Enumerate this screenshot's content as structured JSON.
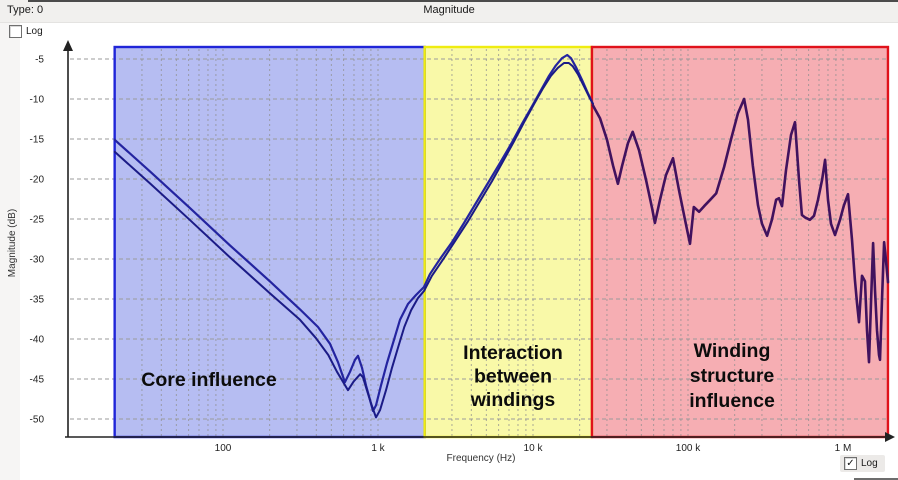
{
  "window": {
    "title": "Magnitude",
    "type_label": "Type: 0",
    "log_checkbox_top": {
      "label": "Log",
      "checked": false
    },
    "log_checkbox_bottom": {
      "label": "Log",
      "checked": true
    }
  },
  "chart_data": {
    "type": "line",
    "title": "Magnitude",
    "x_axis": {
      "label": "Frequency (Hz)",
      "scale": "log",
      "range_hz": [
        20,
        2000000
      ],
      "ticks": [
        {
          "value": 100,
          "label": "100"
        },
        {
          "value": 1000,
          "label": "1 k"
        },
        {
          "value": 10000,
          "label": "10 k"
        },
        {
          "value": 100000,
          "label": "100 k"
        },
        {
          "value": 1000000,
          "label": "1 M"
        }
      ]
    },
    "y_axis": {
      "label": "Magnitude (dB)",
      "range_db": [
        -52,
        -4
      ],
      "ticks": [
        -5,
        -10,
        -15,
        -20,
        -25,
        -30,
        -35,
        -40,
        -45,
        -50
      ]
    },
    "regions": [
      {
        "name": "core-influence",
        "label_lines": [
          "Core influence"
        ],
        "from_hz": 20,
        "to_hz": 2000,
        "fill": "#b6bdf2",
        "border": "#2025d8"
      },
      {
        "name": "interaction-between-windings",
        "label_lines": [
          "Interaction",
          "between",
          "windings"
        ],
        "from_hz": 2000,
        "to_hz": 24000,
        "fill": "#f9f9a8",
        "border": "#efec10"
      },
      {
        "name": "winding-structure-influence",
        "label_lines": [
          "Winding",
          "structure",
          "influence"
        ],
        "from_hz": 24000,
        "to_hz": 1950000,
        "fill": "#f6aeb3",
        "border": "#e0121b"
      }
    ],
    "series": [
      {
        "name": "sweep-upper",
        "color": "#2424a0",
        "width": 2.2,
        "points_hz_db": [
          [
            20,
            -15.1
          ],
          [
            34,
            -19.1
          ],
          [
            61,
            -23.6
          ],
          [
            111,
            -28.3
          ],
          [
            201,
            -32.8
          ],
          [
            314,
            -36.3
          ],
          [
            410,
            -38.5
          ],
          [
            490,
            -40.6
          ],
          [
            552,
            -42.9
          ],
          [
            612,
            -45.4
          ],
          [
            660,
            -44.1
          ],
          [
            711,
            -42.6
          ],
          [
            743,
            -42.1
          ],
          [
            789,
            -43.6
          ],
          [
            837,
            -45.8
          ],
          [
            888,
            -47.6
          ],
          [
            929,
            -49.0
          ],
          [
            971,
            -48.3
          ],
          [
            1046,
            -45.8
          ],
          [
            1143,
            -43.0
          ],
          [
            1268,
            -40.1
          ],
          [
            1387,
            -37.6
          ],
          [
            1563,
            -35.6
          ],
          [
            1758,
            -34.5
          ],
          [
            1981,
            -33.5
          ],
          [
            2163,
            -31.9
          ],
          [
            2512,
            -30.0
          ],
          [
            3000,
            -27.9
          ],
          [
            3589,
            -25.5
          ],
          [
            4285,
            -23.0
          ],
          [
            5125,
            -20.5
          ],
          [
            6128,
            -18.0
          ],
          [
            7328,
            -15.4
          ],
          [
            8492,
            -13.1
          ],
          [
            9860,
            -10.9
          ],
          [
            11270,
            -8.9
          ],
          [
            12680,
            -7.1
          ],
          [
            14060,
            -5.8
          ],
          [
            15380,
            -4.9
          ],
          [
            16610,
            -4.5
          ],
          [
            17580,
            -4.9
          ],
          [
            18920,
            -6.0
          ],
          [
            20700,
            -7.6
          ],
          [
            22650,
            -9.3
          ],
          [
            24340,
            -10.6
          ]
        ]
      },
      {
        "name": "sweep-lower",
        "color": "#1b1b86",
        "width": 2.0,
        "points_hz_db": [
          [
            20,
            -16.6
          ],
          [
            34,
            -20.6
          ],
          [
            61,
            -25.1
          ],
          [
            111,
            -29.8
          ],
          [
            201,
            -34.3
          ],
          [
            314,
            -37.6
          ],
          [
            398,
            -39.9
          ],
          [
            478,
            -42.0
          ],
          [
            544,
            -44.1
          ],
          [
            640,
            -46.4
          ],
          [
            697,
            -45.3
          ],
          [
            768,
            -44.4
          ],
          [
            800,
            -44.8
          ],
          [
            848,
            -46.4
          ],
          [
            900,
            -48.0
          ],
          [
            971,
            -49.8
          ],
          [
            1030,
            -48.9
          ],
          [
            1126,
            -46.4
          ],
          [
            1232,
            -43.6
          ],
          [
            1349,
            -41.0
          ],
          [
            1477,
            -38.5
          ],
          [
            1635,
            -36.4
          ],
          [
            1810,
            -34.9
          ],
          [
            1981,
            -34.0
          ],
          [
            2226,
            -32.1
          ],
          [
            2661,
            -29.9
          ],
          [
            3180,
            -27.6
          ],
          [
            3800,
            -25.3
          ],
          [
            4542,
            -22.8
          ],
          [
            5428,
            -20.3
          ],
          [
            6487,
            -17.6
          ],
          [
            7540,
            -15.3
          ],
          [
            8763,
            -12.9
          ],
          [
            10180,
            -10.6
          ],
          [
            11650,
            -8.6
          ],
          [
            13040,
            -7.1
          ],
          [
            14470,
            -6.1
          ],
          [
            15840,
            -5.5
          ],
          [
            17010,
            -5.5
          ],
          [
            18040,
            -5.9
          ],
          [
            19470,
            -6.9
          ],
          [
            21290,
            -8.4
          ],
          [
            23240,
            -9.9
          ],
          [
            24340,
            -10.6
          ]
        ]
      },
      {
        "name": "sweep-high-frequency",
        "color": "#41125e",
        "width": 2.6,
        "points_hz_db": [
          [
            24340,
            -10.8
          ],
          [
            27050,
            -12.4
          ],
          [
            30000,
            -15.1
          ],
          [
            32800,
            -18.3
          ],
          [
            35300,
            -20.6
          ],
          [
            37500,
            -18.4
          ],
          [
            41000,
            -15.5
          ],
          [
            44000,
            -14.1
          ],
          [
            48300,
            -16.4
          ],
          [
            53600,
            -20.1
          ],
          [
            58600,
            -23.6
          ],
          [
            61200,
            -25.5
          ],
          [
            66000,
            -22.6
          ],
          [
            72100,
            -19.5
          ],
          [
            80000,
            -17.4
          ],
          [
            87500,
            -21.4
          ],
          [
            95700,
            -25.1
          ],
          [
            103000,
            -28.1
          ],
          [
            109000,
            -23.5
          ],
          [
            118000,
            -24.1
          ],
          [
            127000,
            -23.4
          ],
          [
            139000,
            -22.6
          ],
          [
            152000,
            -21.8
          ],
          [
            171000,
            -18.5
          ],
          [
            189000,
            -15.1
          ],
          [
            210000,
            -11.8
          ],
          [
            230000,
            -10.0
          ],
          [
            244000,
            -12.6
          ],
          [
            262000,
            -18.3
          ],
          [
            283000,
            -23.3
          ],
          [
            300000,
            -25.6
          ],
          [
            324000,
            -27.1
          ],
          [
            348000,
            -25.1
          ],
          [
            370000,
            -22.6
          ],
          [
            386000,
            -22.4
          ],
          [
            404000,
            -23.4
          ],
          [
            429000,
            -18.9
          ],
          [
            462000,
            -14.5
          ],
          [
            490000,
            -12.9
          ],
          [
            520000,
            -20.1
          ],
          [
            543000,
            -24.5
          ],
          [
            569000,
            -24.8
          ],
          [
            612000,
            -25.1
          ],
          [
            650000,
            -24.6
          ],
          [
            690000,
            -22.6
          ],
          [
            733000,
            -20.1
          ],
          [
            766000,
            -17.6
          ],
          [
            800000,
            -22.6
          ],
          [
            837000,
            -25.6
          ],
          [
            888000,
            -27.0
          ],
          [
            957000,
            -25.1
          ],
          [
            1014000,
            -23.3
          ],
          [
            1077000,
            -21.9
          ],
          [
            1143000,
            -27.6
          ],
          [
            1194000,
            -32.6
          ],
          [
            1231000,
            -35.5
          ],
          [
            1268000,
            -37.9
          ],
          [
            1326000,
            -32.1
          ],
          [
            1387000,
            -32.8
          ],
          [
            1429000,
            -38.9
          ],
          [
            1472000,
            -42.9
          ],
          [
            1517000,
            -35.1
          ],
          [
            1563000,
            -28.0
          ],
          [
            1608000,
            -33.9
          ],
          [
            1656000,
            -38.9
          ],
          [
            1706000,
            -42.0
          ],
          [
            1733000,
            -42.6
          ],
          [
            1786000,
            -35.1
          ],
          [
            1841000,
            -27.9
          ],
          [
            1892000,
            -30.1
          ],
          [
            1950000,
            -32.9
          ]
        ]
      }
    ]
  }
}
